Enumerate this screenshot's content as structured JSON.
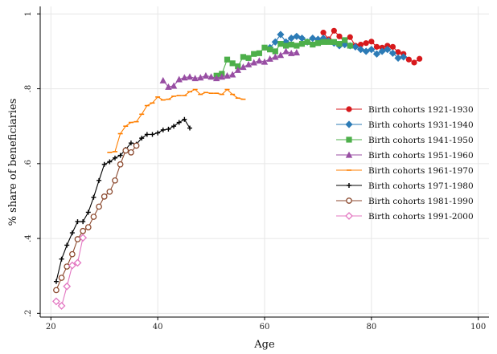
{
  "chart_data": {
    "type": "line",
    "title": "",
    "xlabel": "Age",
    "ylabel": "% share of beneficiaries",
    "xlim": [
      18,
      102
    ],
    "ylim": [
      0.19,
      1.02
    ],
    "xticks": [
      20,
      40,
      60,
      80,
      100
    ],
    "xtick_labels": [
      "20",
      "40",
      "60",
      "80",
      "100"
    ],
    "yticks": [
      0.2,
      0.4,
      0.6,
      0.8,
      1.0
    ],
    "ytick_labels": [
      ".2",
      ".4",
      ".6",
      ".8",
      "1"
    ],
    "grid": true,
    "legend_position": "right",
    "series": [
      {
        "name": "Birth cohorts 1921-1930",
        "color": "#d7191c",
        "marker": "circle",
        "x": [
          71,
          72,
          73,
          74,
          75,
          76,
          77,
          78,
          79,
          80,
          81,
          82,
          83,
          84,
          85,
          86,
          87,
          88,
          89
        ],
        "y": [
          0.95,
          0.932,
          0.955,
          0.94,
          0.925,
          0.938,
          0.915,
          0.918,
          0.922,
          0.926,
          0.912,
          0.91,
          0.915,
          0.912,
          0.898,
          0.893,
          0.878,
          0.87,
          0.88
        ]
      },
      {
        "name": "Birth cohorts 1931-1940",
        "color": "#2c7bb6",
        "marker": "diamond",
        "x": [
          61,
          62,
          63,
          64,
          65,
          66,
          67,
          68,
          69,
          70,
          71,
          72,
          73,
          74,
          75,
          76,
          77,
          78,
          79,
          80,
          81,
          82,
          83,
          84,
          85,
          86
        ],
        "y": [
          0.91,
          0.925,
          0.945,
          0.925,
          0.935,
          0.94,
          0.935,
          0.925,
          0.935,
          0.932,
          0.935,
          0.928,
          0.922,
          0.915,
          0.918,
          0.915,
          0.912,
          0.905,
          0.9,
          0.905,
          0.893,
          0.9,
          0.905,
          0.895,
          0.882,
          0.885
        ]
      },
      {
        "name": "Birth cohorts 1941-1950",
        "color": "#4daf4a",
        "marker": "square",
        "x": [
          51,
          52,
          53,
          54,
          55,
          56,
          57,
          58,
          59,
          60,
          61,
          62,
          63,
          64,
          65,
          66,
          67,
          68,
          69,
          70,
          71,
          72,
          73,
          74,
          75,
          76
        ],
        "y": [
          0.835,
          0.84,
          0.878,
          0.868,
          0.86,
          0.885,
          0.882,
          0.893,
          0.895,
          0.91,
          0.905,
          0.9,
          0.92,
          0.915,
          0.918,
          0.915,
          0.92,
          0.925,
          0.918,
          0.922,
          0.925,
          0.925,
          0.925,
          0.92,
          0.93,
          0.915
        ]
      },
      {
        "name": "Birth cohorts 1951-1960",
        "color": "#984ea3",
        "marker": "triangle",
        "x": [
          41,
          42,
          43,
          44,
          45,
          46,
          47,
          48,
          49,
          50,
          51,
          52,
          53,
          54,
          55,
          56,
          57,
          58,
          59,
          60,
          61,
          62,
          63,
          64,
          65,
          66
        ],
        "y": [
          0.822,
          0.805,
          0.808,
          0.825,
          0.83,
          0.832,
          0.828,
          0.83,
          0.835,
          0.832,
          0.828,
          0.832,
          0.835,
          0.838,
          0.85,
          0.858,
          0.865,
          0.87,
          0.875,
          0.872,
          0.88,
          0.885,
          0.89,
          0.9,
          0.895,
          0.897
        ]
      },
      {
        "name": "Birth cohorts 1961-1970",
        "color": "#ff7f00",
        "marker": "tick",
        "x": [
          31,
          32,
          33,
          34,
          35,
          36,
          37,
          38,
          39,
          40,
          41,
          42,
          43,
          44,
          45,
          46,
          47,
          48,
          49,
          50,
          51,
          52,
          53,
          54,
          55,
          56
        ],
        "y": [
          0.63,
          0.632,
          0.68,
          0.7,
          0.71,
          0.712,
          0.732,
          0.755,
          0.762,
          0.778,
          0.77,
          0.772,
          0.78,
          0.782,
          0.782,
          0.792,
          0.798,
          0.785,
          0.79,
          0.788,
          0.788,
          0.785,
          0.798,
          0.785,
          0.775,
          0.772
        ]
      },
      {
        "name": "Birth cohorts 1971-1980",
        "color": "#000000",
        "marker": "plus",
        "x": [
          21,
          22,
          23,
          24,
          25,
          26,
          27,
          28,
          29,
          30,
          31,
          32,
          33,
          34,
          35,
          36,
          37,
          38,
          39,
          40,
          41,
          42,
          43,
          44,
          45,
          46
        ],
        "y": [
          0.285,
          0.345,
          0.382,
          0.415,
          0.445,
          0.445,
          0.47,
          0.51,
          0.555,
          0.598,
          0.605,
          0.615,
          0.622,
          0.638,
          0.655,
          0.652,
          0.668,
          0.678,
          0.678,
          0.682,
          0.69,
          0.692,
          0.7,
          0.71,
          0.718,
          0.695
        ]
      },
      {
        "name": "Birth cohorts 1981-1990",
        "color": "#8c4a2f",
        "marker": "open-circle",
        "x": [
          21,
          22,
          23,
          24,
          25,
          26,
          27,
          28,
          29,
          30,
          31,
          32,
          33,
          34,
          35,
          36
        ],
        "y": [
          0.262,
          0.295,
          0.325,
          0.358,
          0.398,
          0.42,
          0.43,
          0.458,
          0.485,
          0.512,
          0.525,
          0.555,
          0.598,
          0.635,
          0.63,
          0.648
        ]
      },
      {
        "name": "Birth cohorts 1991-2000",
        "color": "#e377c2",
        "marker": "open-diamond",
        "x": [
          21,
          22,
          23,
          24,
          25,
          26
        ],
        "y": [
          0.232,
          0.22,
          0.272,
          0.328,
          0.335,
          0.402
        ]
      }
    ]
  }
}
